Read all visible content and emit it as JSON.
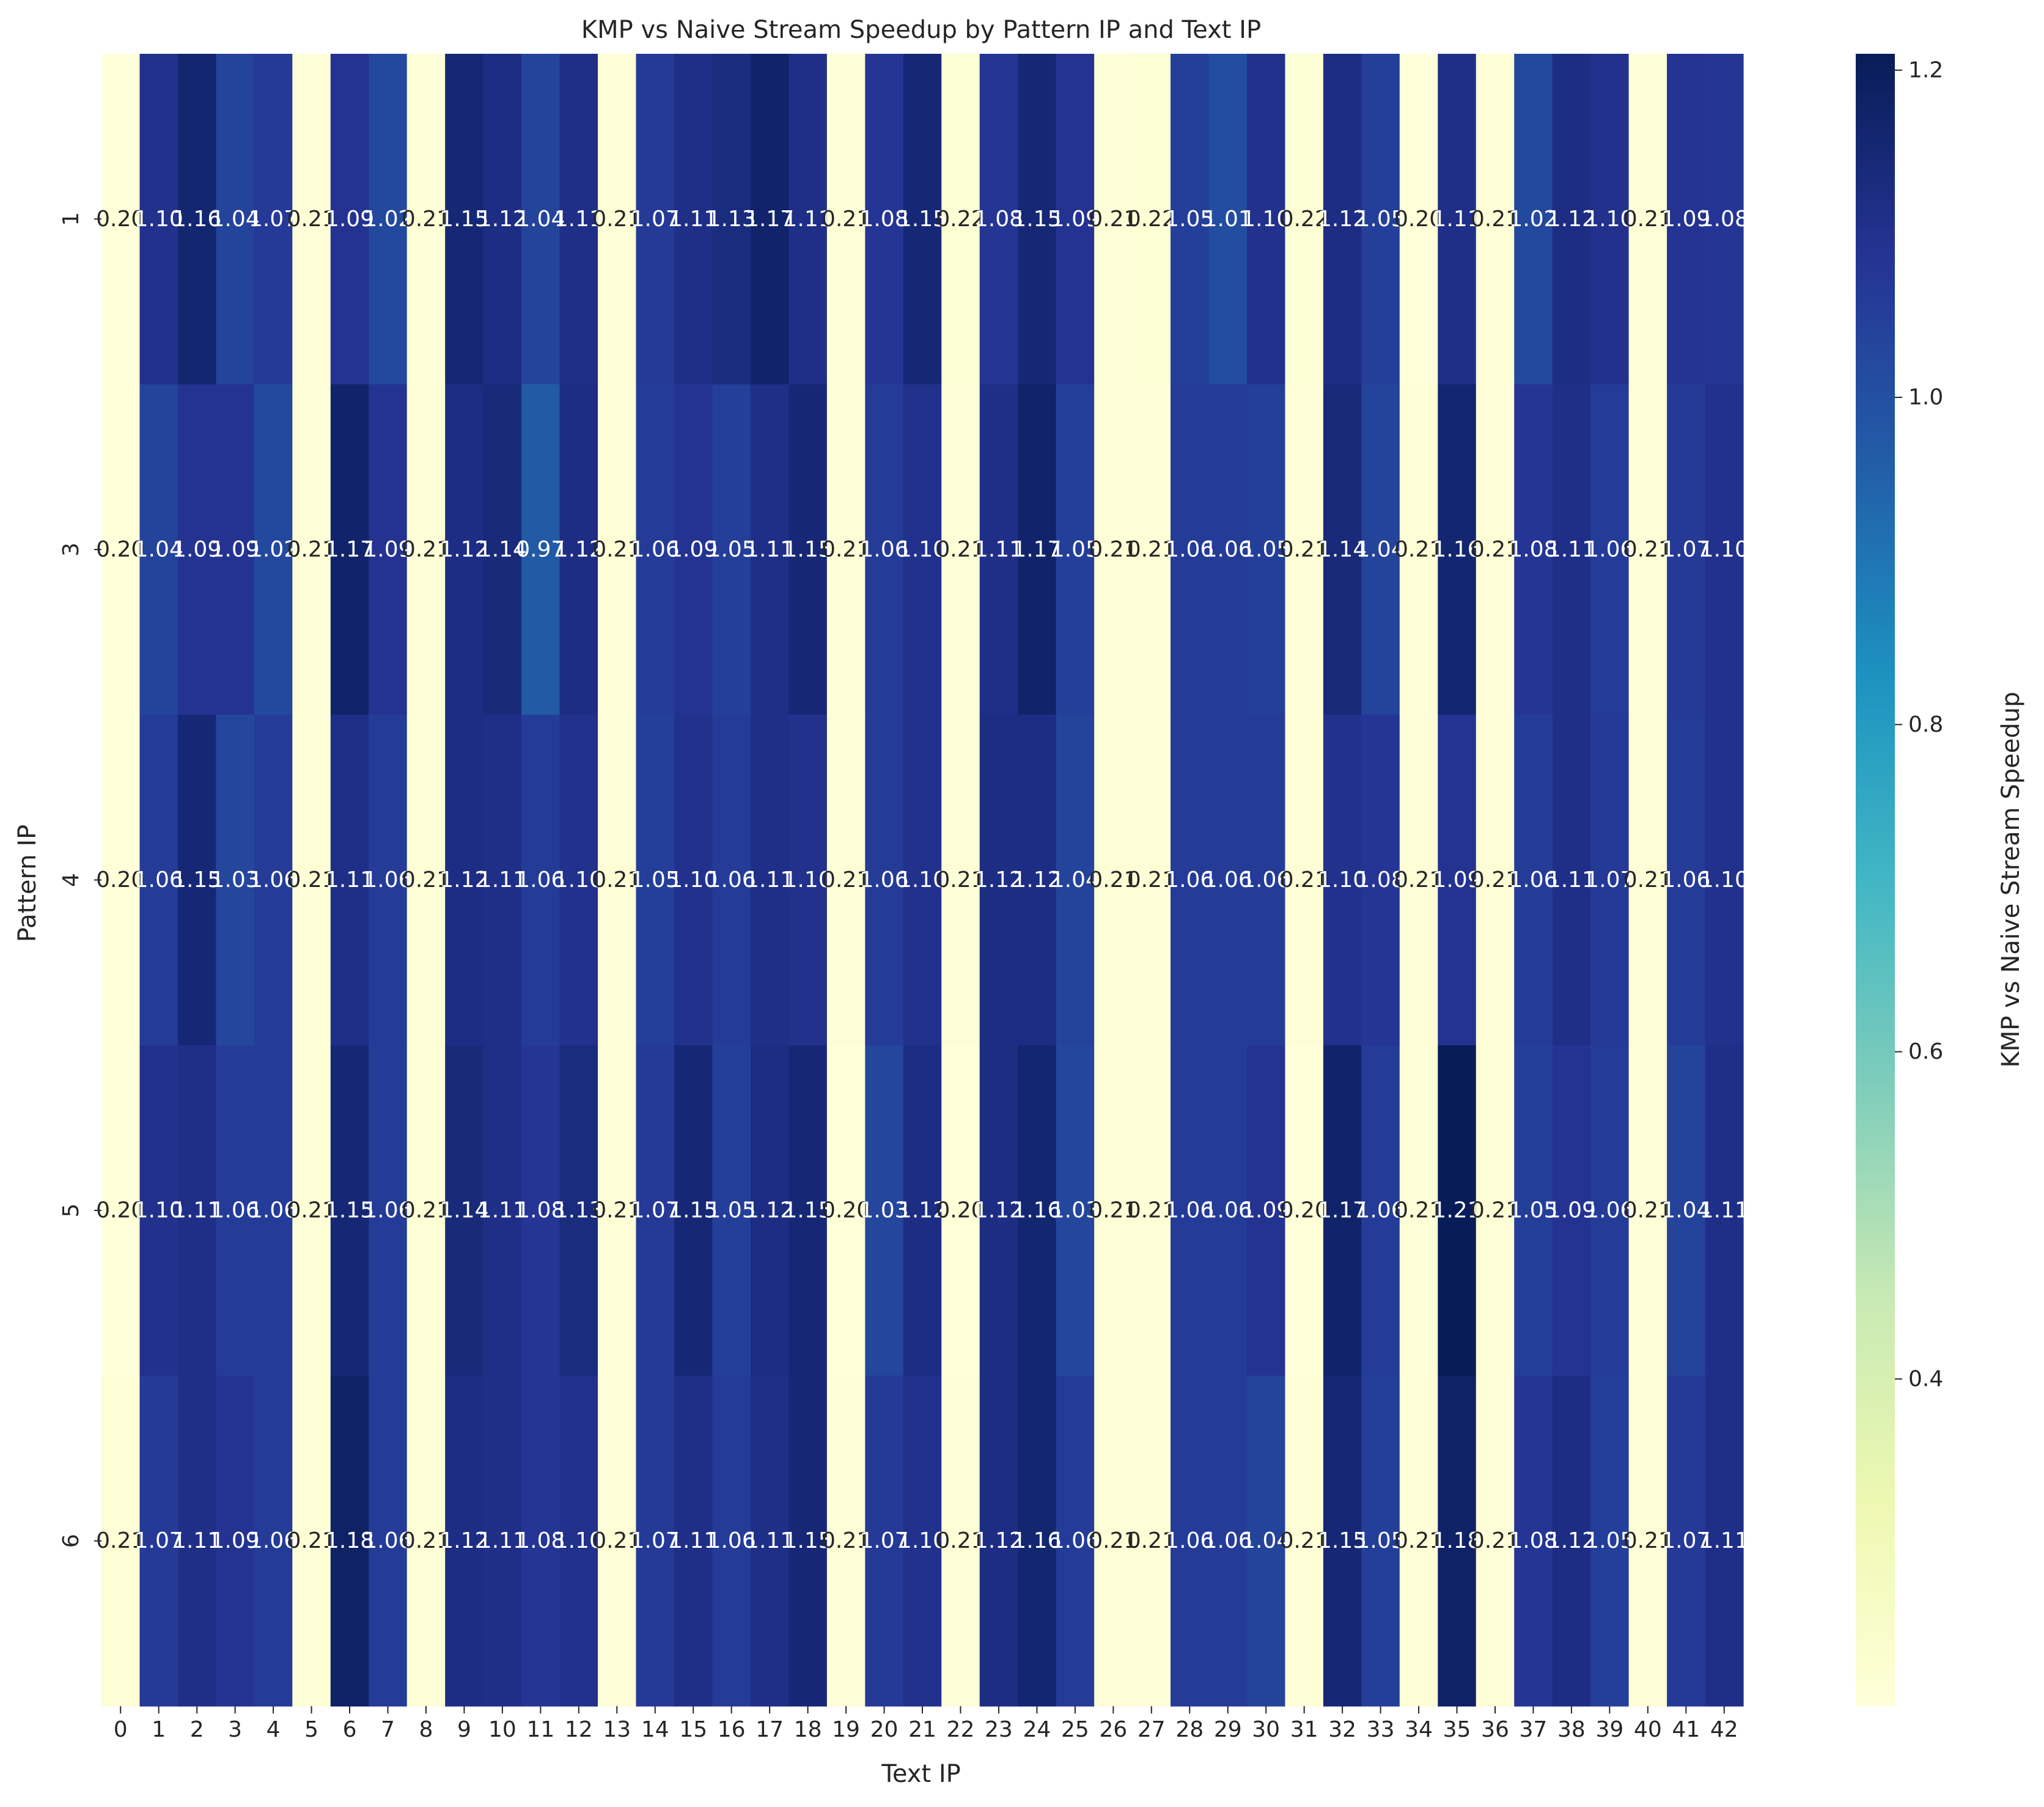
{
  "chart_data": {
    "type": "heatmap",
    "title": "KMP vs Naive Stream Speedup by Pattern IP and Text IP",
    "xlabel": "Text IP",
    "ylabel": "Pattern IP",
    "x_categories": [
      "0",
      "1",
      "2",
      "3",
      "4",
      "5",
      "6",
      "7",
      "8",
      "9",
      "10",
      "11",
      "12",
      "13",
      "14",
      "15",
      "16",
      "17",
      "18",
      "19",
      "20",
      "21",
      "22",
      "23",
      "24",
      "25",
      "26",
      "27",
      "28",
      "29",
      "30",
      "31",
      "32",
      "33",
      "34",
      "35",
      "36",
      "37",
      "38",
      "39",
      "40",
      "41",
      "42"
    ],
    "y_categories": [
      "1",
      "3",
      "4",
      "5",
      "6"
    ],
    "values": [
      [
        0.2,
        1.1,
        1.16,
        1.04,
        1.07,
        0.21,
        1.09,
        1.02,
        0.21,
        1.15,
        1.12,
        1.04,
        1.11,
        0.21,
        1.07,
        1.11,
        1.13,
        1.17,
        1.11,
        0.21,
        1.08,
        1.15,
        0.22,
        1.08,
        1.15,
        1.09,
        0.21,
        0.22,
        1.05,
        1.01,
        1.1,
        0.22,
        1.12,
        1.05,
        0.2,
        1.11,
        0.21,
        1.02,
        1.12,
        1.1,
        0.21,
        1.09,
        1.08
      ],
      [
        0.2,
        1.04,
        1.09,
        1.09,
        1.02,
        0.21,
        1.17,
        1.09,
        0.21,
        1.12,
        1.14,
        0.97,
        1.12,
        0.21,
        1.06,
        1.09,
        1.05,
        1.11,
        1.15,
        0.21,
        1.06,
        1.1,
        0.21,
        1.11,
        1.17,
        1.05,
        0.21,
        0.21,
        1.06,
        1.06,
        1.05,
        0.21,
        1.14,
        1.04,
        0.21,
        1.16,
        0.21,
        1.08,
        1.11,
        1.06,
        0.21,
        1.07,
        1.1
      ],
      [
        0.2,
        1.06,
        1.15,
        1.03,
        1.06,
        0.21,
        1.11,
        1.06,
        0.21,
        1.12,
        1.11,
        1.06,
        1.1,
        0.21,
        1.05,
        1.1,
        1.06,
        1.11,
        1.1,
        0.21,
        1.06,
        1.1,
        0.21,
        1.12,
        1.12,
        1.04,
        0.21,
        0.21,
        1.06,
        1.06,
        1.06,
        0.21,
        1.1,
        1.08,
        0.21,
        1.09,
        0.21,
        1.06,
        1.11,
        1.07,
        0.21,
        1.06,
        1.1
      ],
      [
        0.2,
        1.1,
        1.11,
        1.06,
        1.06,
        0.21,
        1.15,
        1.06,
        0.21,
        1.14,
        1.11,
        1.08,
        1.13,
        0.21,
        1.07,
        1.15,
        1.05,
        1.12,
        1.15,
        0.2,
        1.03,
        1.12,
        0.2,
        1.12,
        1.16,
        1.03,
        0.21,
        0.21,
        1.06,
        1.06,
        1.09,
        0.2,
        1.17,
        1.06,
        0.21,
        1.21,
        0.21,
        1.05,
        1.09,
        1.06,
        0.21,
        1.04,
        1.11
      ],
      [
        0.21,
        1.07,
        1.11,
        1.09,
        1.06,
        0.21,
        1.18,
        1.06,
        0.21,
        1.12,
        1.11,
        1.08,
        1.1,
        0.21,
        1.07,
        1.11,
        1.06,
        1.11,
        1.15,
        0.21,
        1.07,
        1.1,
        0.21,
        1.12,
        1.16,
        1.06,
        0.21,
        0.21,
        1.06,
        1.06,
        1.04,
        0.21,
        1.15,
        1.05,
        0.21,
        1.18,
        0.21,
        1.08,
        1.12,
        1.05,
        0.21,
        1.07,
        1.11
      ]
    ],
    "value_format": "2 decimals",
    "colormap": "YlGnBu",
    "colorbar": {
      "label": "KMP vs Naive Stream Speedup",
      "range": [
        0.2,
        1.21
      ],
      "ticks": [
        "0.4",
        "0.6",
        "0.8",
        "1.0",
        "1.2"
      ],
      "tick_values": [
        0.4,
        0.6,
        0.8,
        1.0,
        1.2
      ]
    },
    "grid": false,
    "legend": "colorbar-right"
  }
}
